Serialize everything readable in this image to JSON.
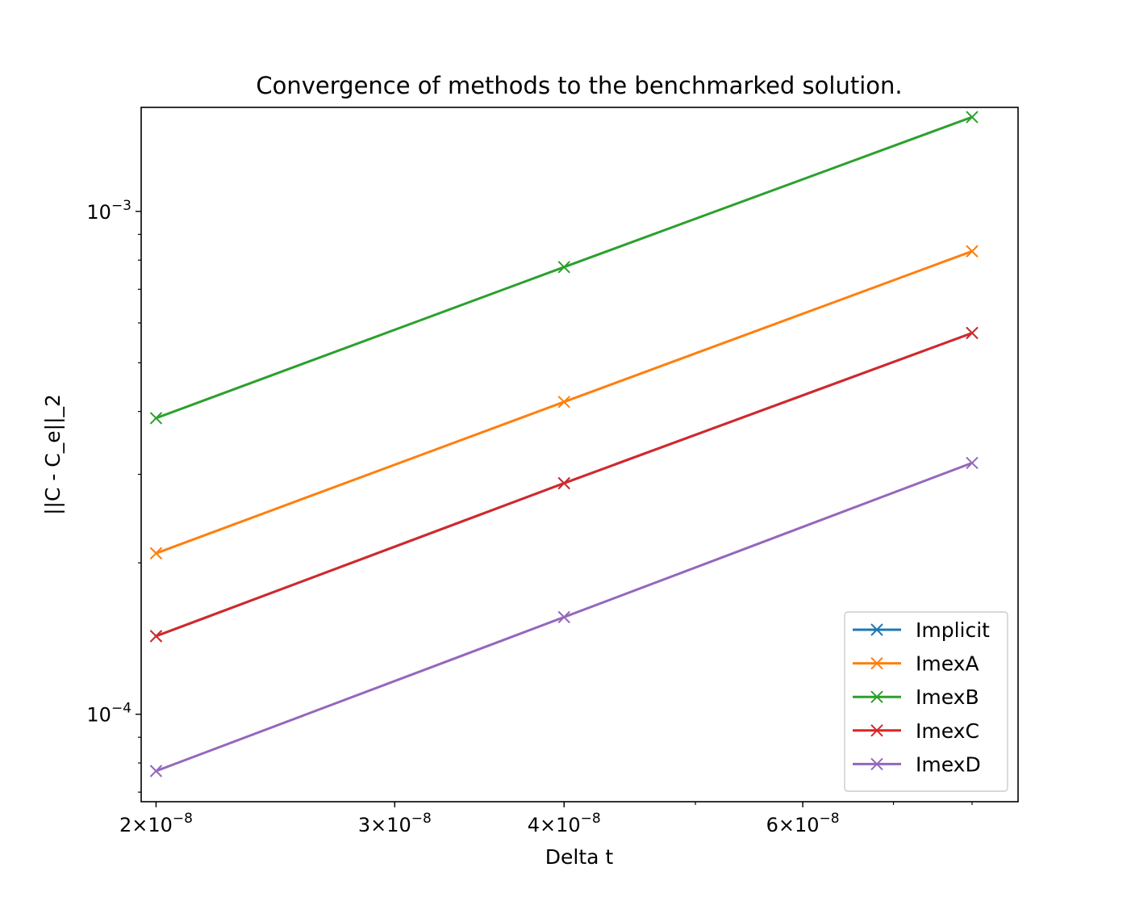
{
  "chart_data": {
    "type": "line",
    "title": "Convergence of methods to the benchmarked solution.",
    "xlabel": "Delta t",
    "ylabel": "||C - C_e||_2",
    "xscale": "log",
    "yscale": "log",
    "xlim": [
      1.95e-08,
      8.65e-08
    ],
    "ylim": [
      6.7e-05,
      0.00161
    ],
    "marker": "x",
    "grid": false,
    "legend_position": "lower-right",
    "x": [
      2e-08,
      4e-08,
      8e-08
    ],
    "x_ticks": [
      {
        "value": 2e-08,
        "mantissa": "2",
        "exponent": "−8"
      },
      {
        "value": 3e-08,
        "mantissa": "3",
        "exponent": "−8"
      },
      {
        "value": 4e-08,
        "mantissa": "4",
        "exponent": "−8"
      },
      {
        "value": 6e-08,
        "mantissa": "6",
        "exponent": "−8"
      }
    ],
    "y_ticks": [
      {
        "value": 0.001,
        "base": "10",
        "exponent": "−3"
      },
      {
        "value": 0.0001,
        "base": "10",
        "exponent": "−4"
      }
    ],
    "series": [
      {
        "name": "Implicit",
        "color": "#1f77b4",
        "values": [
          0.000143,
          0.000288,
          0.000573
        ]
      },
      {
        "name": "ImexA",
        "color": "#ff7f0e",
        "values": [
          0.000209,
          0.000418,
          0.000833
        ]
      },
      {
        "name": "ImexB",
        "color": "#2ca02c",
        "values": [
          0.000388,
          0.000775,
          0.00154
        ]
      },
      {
        "name": "ImexC",
        "color": "#d62728",
        "values": [
          0.000143,
          0.000288,
          0.000573
        ]
      },
      {
        "name": "ImexD",
        "color": "#9467bd",
        "values": [
          7.71e-05,
          0.000156,
          0.000316
        ]
      }
    ]
  }
}
